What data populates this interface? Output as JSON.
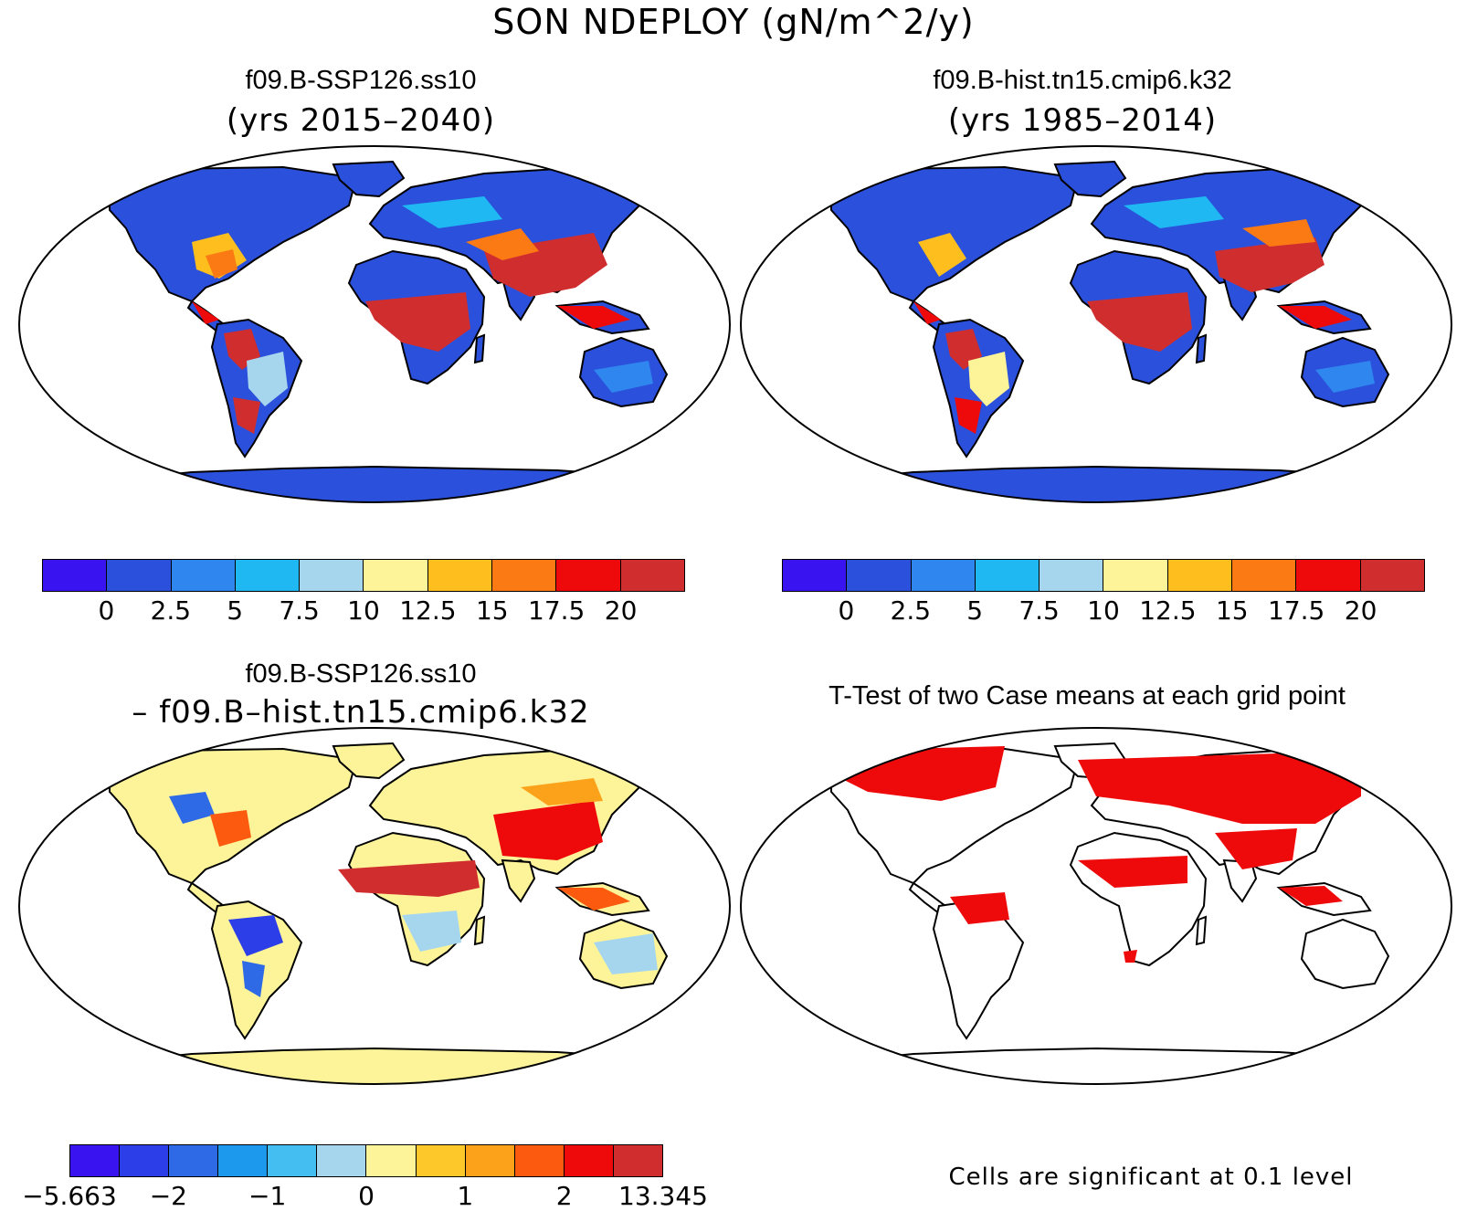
{
  "title": "SON NDEPLOY (gN/m^2/y)",
  "panels": {
    "top_left": {
      "title": "f09.B-SSP126.ss10",
      "subtitle": "(yrs 2015–2040)"
    },
    "top_right": {
      "title": "f09.B-hist.tn15.cmip6.k32",
      "subtitle": "(yrs 1985–2014)"
    },
    "bottom_left": {
      "title": "f09.B-SSP126.ss10",
      "subtitle": "– f09.B–hist.tn15.cmip6.k32"
    },
    "bottom_right": {
      "title": "T-Test of two Case means at each grid point",
      "note": "Cells are significant at 0.1 level"
    }
  },
  "colorbars": {
    "absolute": {
      "colors": [
        "#3a14f0",
        "#2b50dc",
        "#2e86ee",
        "#1fb8f2",
        "#a6d6ee",
        "#fdf49a",
        "#fdbe1e",
        "#fc7a14",
        "#ee0a0a",
        "#d02e2e"
      ],
      "labels": [
        "0",
        "2.5",
        "5",
        "7.5",
        "10",
        "12.5",
        "15",
        "17.5",
        "20"
      ]
    },
    "difference": {
      "colors": [
        "#3a14f0",
        "#2b3ee8",
        "#2e6ae6",
        "#1c98ec",
        "#44bdf0",
        "#a6d6ee",
        "#fdf49a",
        "#fdc82a",
        "#fca21a",
        "#fc5a0e",
        "#ee0a0a",
        "#d02e2e"
      ],
      "labels": [
        "−5.663",
        "−2",
        "−1",
        "0",
        "1",
        "2",
        "13.345"
      ]
    }
  },
  "map_colors": {
    "low": "#2b50dc",
    "mid": "#1fb8f2",
    "high": "#d02e2e",
    "diff_base": "#fdf49a",
    "signif": "#ee0a0a"
  }
}
